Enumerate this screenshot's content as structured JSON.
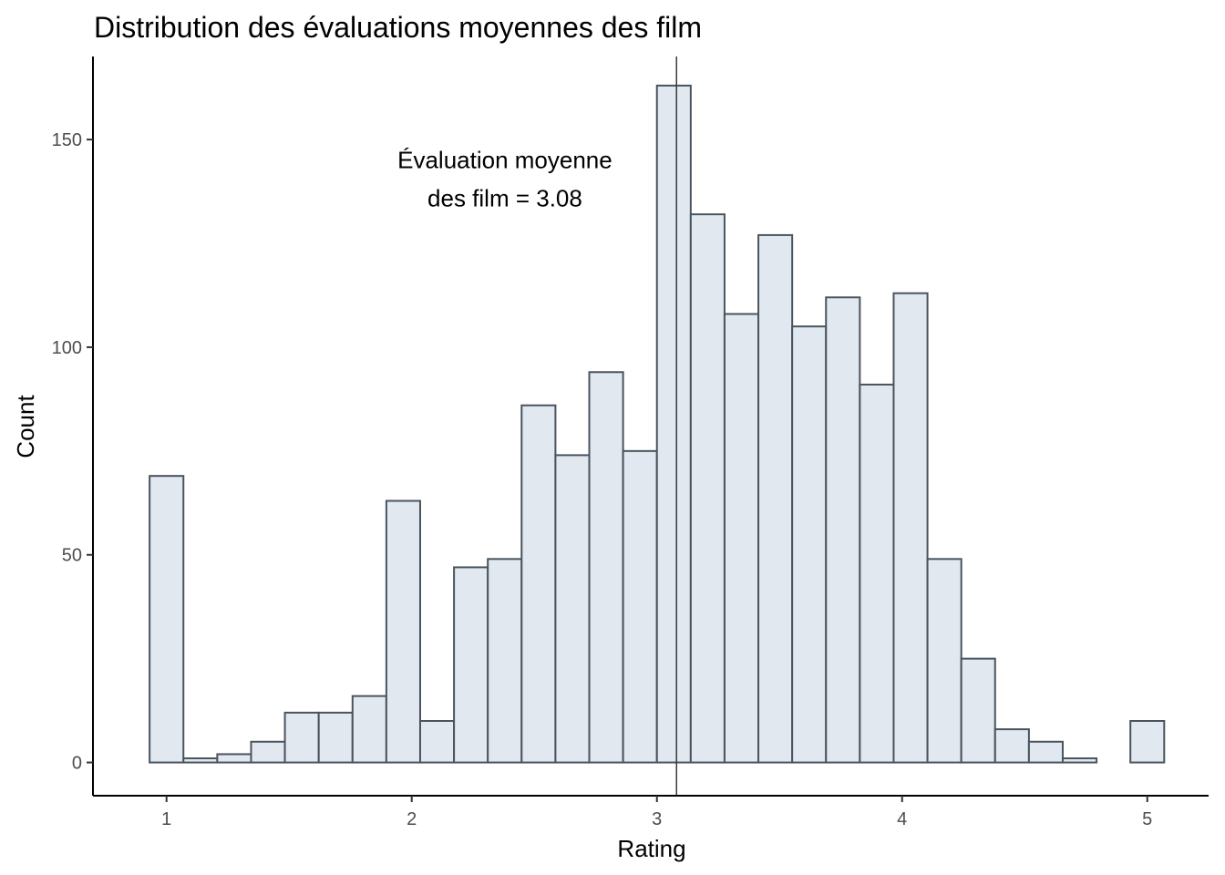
{
  "chart_data": {
    "type": "bar",
    "title": "Distribution des évaluations moyennes des film",
    "xlabel": "Rating",
    "ylabel": "Count",
    "bin_width": 0.1379,
    "bin_centers": [
      1.0,
      1.1379,
      1.2759,
      1.4138,
      1.5517,
      1.6897,
      1.8276,
      1.9655,
      2.1034,
      2.2414,
      2.3793,
      2.5172,
      2.6552,
      2.7931,
      2.931,
      3.069,
      3.2069,
      3.3448,
      3.4828,
      3.6207,
      3.7586,
      3.8966,
      4.0345,
      4.1724,
      4.3103,
      4.4483,
      4.5862,
      4.7241,
      4.8621,
      5.0
    ],
    "values": [
      69,
      1,
      2,
      5,
      12,
      12,
      16,
      63,
      10,
      47,
      49,
      86,
      74,
      94,
      75,
      163,
      132,
      108,
      127,
      105,
      112,
      91,
      113,
      49,
      25,
      8,
      5,
      1,
      0,
      10
    ],
    "xlim": [
      0.7,
      5.25
    ],
    "ylim": [
      -8,
      170
    ],
    "x_ticks": [
      1,
      2,
      3,
      4,
      5
    ],
    "x_tick_labels": [
      "1",
      "2",
      "3",
      "4",
      "5"
    ],
    "y_ticks": [
      0,
      50,
      100,
      150
    ],
    "y_tick_labels": [
      "0",
      "50",
      "100",
      "150"
    ],
    "mean_line": 3.08,
    "annotation_lines": [
      "Évaluation moyenne",
      "des film = 3.08"
    ],
    "annotation_anchor": {
      "x": 2.38,
      "y": 140.5
    },
    "grid": false,
    "colors": {
      "bar_fill": "#e1e8ef",
      "bar_stroke": "#4a545e",
      "mean_line": "#3a3a3a"
    }
  }
}
